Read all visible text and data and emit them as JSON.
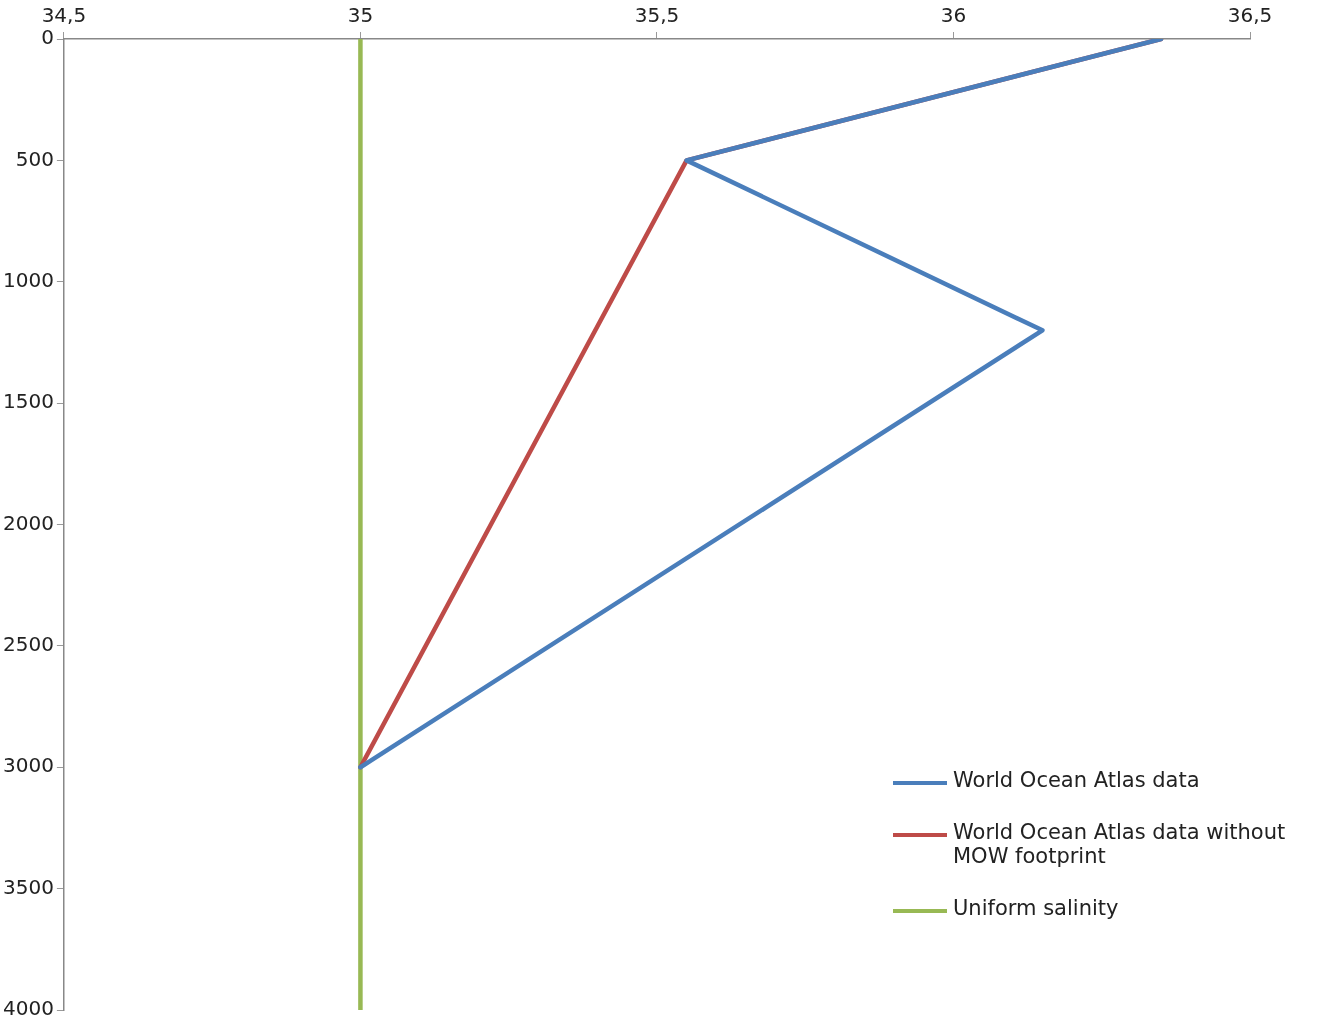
{
  "chart_data": {
    "type": "line",
    "xlim": [
      34.5,
      36.5
    ],
    "xticks": [
      {
        "value": 34.5,
        "label": "34,5"
      },
      35,
      {
        "value": 35.5,
        "label": "35,5"
      },
      36,
      {
        "value": 36.5,
        "label": "36,5"
      }
    ],
    "ylim": [
      4000,
      0
    ],
    "yticks": [
      0,
      500,
      1000,
      1500,
      2000,
      2500,
      3000,
      3500,
      4000
    ],
    "series": [
      {
        "name": "World Ocean Atlas data",
        "color": "#4a7ebb",
        "x": [
          36.35,
          35.55,
          36.15,
          35.0
        ],
        "values": [
          0,
          500,
          1200,
          3000
        ]
      },
      {
        "name": "World Ocean Atlas data without MOW footprint",
        "color": "#be4b48",
        "x": [
          36.35,
          35.55,
          35.0
        ],
        "values": [
          0,
          500,
          3000
        ]
      },
      {
        "name": "Uniform salinity",
        "color": "#98b954",
        "x": [
          35,
          35
        ],
        "values": [
          0,
          4000
        ]
      }
    ],
    "legend": "bottom right",
    "grid": false,
    "marker": "none"
  }
}
